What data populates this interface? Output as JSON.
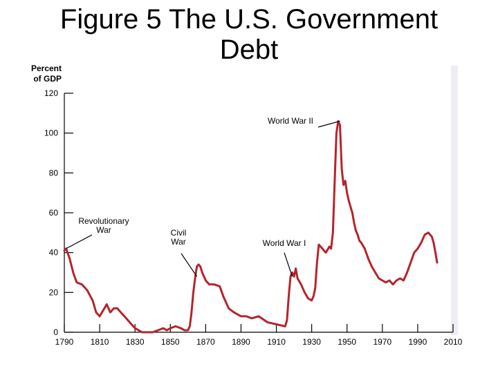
{
  "chart_data": {
    "type": "line",
    "title_line1": "Figure 5 The U.S. Government",
    "title_line2": "Debt",
    "ylabel_line1": "Percent",
    "ylabel_line2": "of GDP",
    "xlabel": "",
    "xlim": [
      1790,
      2010
    ],
    "ylim": [
      0,
      120
    ],
    "x_ticks": [
      "1790",
      "1810",
      "1830",
      "1850",
      "1870",
      "1890",
      "1910",
      "1930",
      "1950",
      "1970",
      "1990",
      "2010"
    ],
    "y_ticks": [
      "0",
      "20",
      "40",
      "60",
      "80",
      "100",
      "120"
    ],
    "grid": false,
    "legend": "none",
    "line_color": "#b5232a",
    "series": [
      {
        "x": [
          1790,
          1791,
          1793,
          1795,
          1797,
          1800,
          1803,
          1806,
          1808,
          1810,
          1812,
          1814,
          1816,
          1818,
          1820,
          1822,
          1824,
          1826,
          1828,
          1830,
          1832,
          1834,
          1836,
          1840,
          1843,
          1846,
          1848,
          1850,
          1853,
          1856,
          1858,
          1860,
          1861,
          1862,
          1863,
          1864,
          1865,
          1866,
          1867,
          1868,
          1870,
          1872,
          1875,
          1878,
          1880,
          1883,
          1886,
          1890,
          1893,
          1896,
          1900,
          1905,
          1910,
          1915,
          1916,
          1917,
          1918,
          1919,
          1920,
          1921,
          1922,
          1924,
          1926,
          1928,
          1930,
          1931,
          1932,
          1933,
          1934,
          1936,
          1938,
          1940,
          1941,
          1942,
          1943,
          1944,
          1945,
          1946,
          1947,
          1948,
          1949,
          1950,
          1951,
          1952,
          1953,
          1954,
          1955,
          1956,
          1957,
          1958,
          1960,
          1962,
          1964,
          1966,
          1968,
          1970,
          1972,
          1974,
          1976,
          1978,
          1980,
          1982,
          1984,
          1986,
          1988,
          1990,
          1992,
          1994,
          1996,
          1998,
          1999,
          2000,
          2001
        ],
        "y": [
          41,
          42,
          37,
          30,
          25,
          24,
          21,
          16,
          10,
          8,
          11,
          14,
          10,
          12,
          12,
          10,
          8,
          6,
          4,
          2,
          1,
          0,
          0,
          0,
          1,
          2,
          1,
          2,
          3,
          2,
          1,
          1,
          3,
          10,
          20,
          27,
          33,
          34,
          33,
          30,
          26,
          24,
          24,
          23,
          18,
          12,
          10,
          8,
          8,
          7,
          8,
          5,
          4,
          3,
          6,
          18,
          28,
          30,
          28,
          32,
          27,
          24,
          20,
          17,
          16,
          18,
          22,
          35,
          44,
          42,
          40,
          43,
          42,
          50,
          75,
          100,
          106,
          104,
          82,
          74,
          76,
          70,
          66,
          63,
          60,
          55,
          51,
          49,
          46,
          45,
          42,
          37,
          33,
          30,
          27,
          26,
          25,
          26,
          24,
          26,
          27,
          26,
          30,
          35,
          40,
          42,
          45,
          49,
          50,
          48,
          45,
          40,
          35
        ]
      }
    ],
    "annotations": [
      {
        "label_lines": [
          "Revolutionary",
          "War"
        ],
        "x": 1791,
        "y": 42
      },
      {
        "label_lines": [
          "Civil",
          "War"
        ],
        "x": 1865,
        "y": 28
      },
      {
        "label_lines": [
          "World War I"
        ],
        "x": 1919,
        "y": 28
      },
      {
        "label_lines": [
          "World War II"
        ],
        "x": 1946,
        "y": 106
      }
    ]
  }
}
